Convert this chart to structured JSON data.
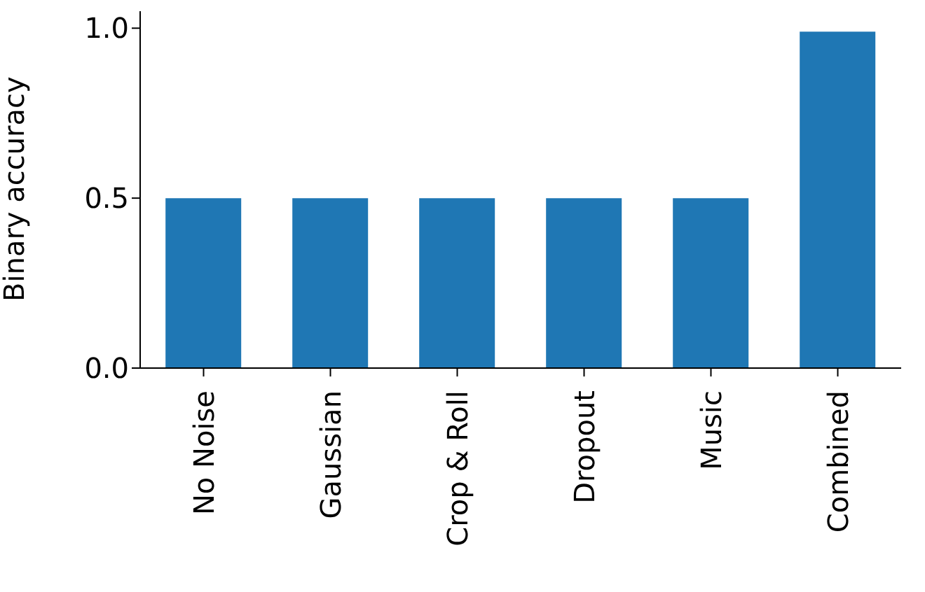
{
  "chart_data": {
    "type": "bar",
    "ylabel": "Binary accuracy",
    "categories": [
      "No Noise",
      "Gaussian",
      "Crop & Roll",
      "Dropout",
      "Music",
      "Combined"
    ],
    "values": [
      0.5,
      0.5,
      0.5,
      0.5,
      0.5,
      0.99
    ],
    "color": "#1f77b4",
    "ylim": [
      0,
      1.05
    ],
    "yticks": [
      {
        "value": 0,
        "label": "0.0"
      },
      {
        "value": 0.5,
        "label": "0.5"
      },
      {
        "value": 1,
        "label": "1.0"
      }
    ],
    "grid": false,
    "legend": false
  }
}
